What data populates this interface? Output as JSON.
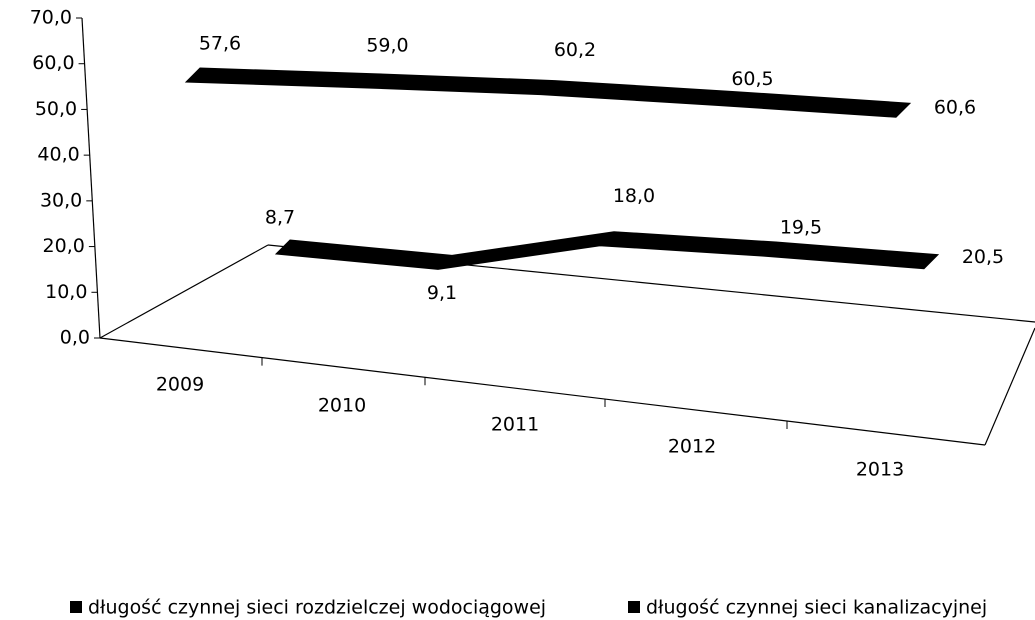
{
  "chart_data": {
    "type": "line3d",
    "categories": [
      "2009",
      "2010",
      "2011",
      "2012",
      "2013"
    ],
    "series": [
      {
        "name": "długość czynnej sieci rozdzielczej wodociągowej",
        "color": "#000000",
        "values": [
          57.6,
          59.0,
          60.2,
          60.5,
          60.6
        ],
        "value_labels": [
          "57,6",
          "59,0",
          "60,2",
          "60,5",
          "60,6"
        ]
      },
      {
        "name": "długość czynnej sieci kanalizacyjnej",
        "color": "#000000",
        "values": [
          8.7,
          9.1,
          18.0,
          19.5,
          20.5
        ],
        "value_labels": [
          "8,7",
          "9,1",
          "18,0",
          "19,5",
          "20,5"
        ]
      }
    ],
    "ylim": [
      0,
      70
    ],
    "yticks": [
      {
        "value": 0,
        "label": "0,0"
      },
      {
        "value": 10,
        "label": "10,0"
      },
      {
        "value": 20,
        "label": "20,0"
      },
      {
        "value": 30,
        "label": "30,0"
      },
      {
        "value": 40,
        "label": "40,0"
      },
      {
        "value": 50,
        "label": "50,0"
      },
      {
        "value": 60,
        "label": "60,0"
      },
      {
        "value": 70,
        "label": "70,0"
      }
    ],
    "legend": "bottom"
  }
}
